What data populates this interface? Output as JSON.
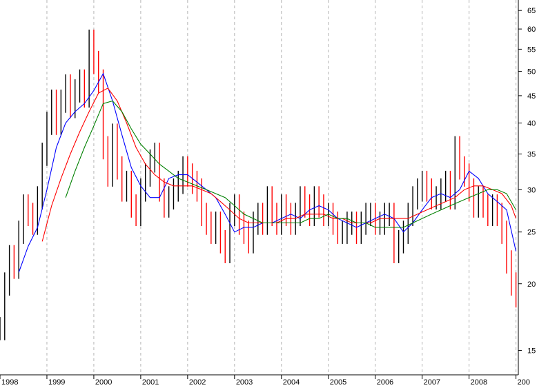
{
  "chart_data": {
    "type": "line",
    "title": "",
    "xlabel": "",
    "ylabel": "",
    "y_scale": "log",
    "ylim": [
      13.5,
      68
    ],
    "xlim": [
      1998.0,
      2009.05
    ],
    "x_ticks": [
      "1998",
      "1999",
      "2000",
      "2001",
      "2002",
      "2003",
      "2004",
      "2005",
      "2006",
      "2007",
      "2008",
      "200"
    ],
    "y_ticks": [
      15,
      20,
      25,
      30,
      35,
      40,
      45,
      50,
      55,
      60,
      65
    ],
    "grid": "vertical-dashed",
    "price_bars": {
      "name": "",
      "up_color": "#000000",
      "down_color": "#ff0000",
      "x": [
        1998.0,
        1998.1,
        1998.2,
        1998.3,
        1998.4,
        1998.5,
        1998.6,
        1998.7,
        1998.8,
        1998.9,
        1999.0,
        1999.1,
        1999.2,
        1999.3,
        1999.4,
        1999.5,
        1999.6,
        1999.7,
        1999.8,
        1999.9,
        2000.0,
        2000.1,
        2000.2,
        2000.3,
        2000.4,
        2000.5,
        2000.6,
        2000.7,
        2000.8,
        2000.9,
        2001.0,
        2001.1,
        2001.2,
        2001.3,
        2001.4,
        2001.5,
        2001.6,
        2001.7,
        2001.8,
        2001.9,
        2002.0,
        2002.1,
        2002.2,
        2002.3,
        2002.4,
        2002.5,
        2002.6,
        2002.7,
        2002.8,
        2002.9,
        2003.0,
        2003.1,
        2003.2,
        2003.3,
        2003.4,
        2003.5,
        2003.6,
        2003.7,
        2003.8,
        2003.9,
        2004.0,
        2004.1,
        2004.2,
        2004.3,
        2004.4,
        2004.5,
        2004.6,
        2004.7,
        2004.8,
        2004.9,
        2005.0,
        2005.1,
        2005.2,
        2005.3,
        2005.4,
        2005.5,
        2005.6,
        2005.7,
        2005.8,
        2005.9,
        2006.0,
        2006.1,
        2006.2,
        2006.3,
        2006.4,
        2006.5,
        2006.6,
        2006.7,
        2006.8,
        2006.9,
        2007.0,
        2007.1,
        2007.2,
        2007.3,
        2007.4,
        2007.5,
        2007.6,
        2007.7,
        2007.8,
        2007.9,
        2008.0,
        2008.1,
        2008.2,
        2008.3,
        2008.4,
        2008.5,
        2008.6,
        2008.7,
        2008.8,
        2008.9,
        2009.0
      ],
      "close": [
        16.5,
        20.0,
        22.5,
        21.5,
        25.0,
        28.0,
        27.0,
        26.0,
        29.0,
        35.0,
        40.0,
        44.0,
        40.0,
        44.0,
        47.0,
        43.0,
        46.0,
        48.0,
        45.0,
        57.0,
        52.0,
        48.0,
        36.0,
        32.0,
        38.0,
        33.0,
        30.0,
        31.0,
        28.0,
        27.0,
        30.0,
        32.0,
        34.0,
        35.0,
        30.0,
        28.0,
        29.0,
        30.0,
        31.0,
        33.0,
        32.0,
        31.0,
        30.0,
        27.0,
        26.0,
        25.0,
        26.0,
        24.0,
        23.0,
        27.0,
        28.0,
        26.0,
        25.0,
        24.0,
        26.0,
        27.0,
        26.0,
        29.0,
        27.0,
        26.0,
        28.0,
        27.0,
        26.0,
        27.0,
        29.0,
        28.0,
        27.0,
        29.0,
        28.0,
        27.0,
        27.0,
        26.0,
        25.0,
        25.0,
        26.0,
        26.0,
        25.0,
        26.0,
        27.0,
        27.0,
        26.0,
        26.0,
        27.0,
        27.0,
        23.0,
        24.0,
        25.0,
        27.0,
        29.0,
        30.0,
        31.0,
        30.0,
        29.0,
        29.0,
        30.0,
        31.0,
        29.0,
        36.0,
        33.0,
        32.0,
        30.0,
        28.0,
        29.0,
        28.0,
        27.0,
        28.0,
        27.0,
        25.0,
        22.0,
        20.0,
        19.0
      ]
    },
    "series": [
      {
        "name": "",
        "color": "#0000ff",
        "x": [
          1998.4,
          1998.6,
          1998.8,
          1999.0,
          1999.2,
          1999.4,
          1999.6,
          1999.8,
          2000.0,
          2000.2,
          2000.4,
          2000.6,
          2000.8,
          2001.0,
          2001.2,
          2001.4,
          2001.6,
          2001.8,
          2002.0,
          2002.2,
          2002.4,
          2002.6,
          2002.8,
          2003.0,
          2003.2,
          2003.4,
          2003.6,
          2003.8,
          2004.0,
          2004.2,
          2004.4,
          2004.6,
          2004.8,
          2005.0,
          2005.2,
          2005.4,
          2005.6,
          2005.8,
          2006.0,
          2006.2,
          2006.4,
          2006.6,
          2006.8,
          2007.0,
          2007.2,
          2007.4,
          2007.6,
          2007.8,
          2008.0,
          2008.2,
          2008.4,
          2008.6,
          2008.8,
          2009.0
        ],
        "y": [
          21.0,
          23.5,
          25.5,
          30.0,
          36.0,
          40.0,
          42.0,
          43.5,
          46.0,
          49.5,
          44.0,
          38.0,
          33.0,
          30.5,
          29.0,
          29.0,
          31.5,
          32.0,
          32.0,
          31.0,
          30.0,
          29.0,
          27.0,
          25.0,
          25.5,
          25.5,
          26.0,
          26.0,
          26.5,
          27.0,
          26.5,
          27.5,
          28.0,
          27.5,
          26.5,
          26.0,
          25.5,
          26.0,
          26.5,
          27.0,
          26.5,
          25.0,
          26.0,
          27.5,
          29.0,
          29.5,
          29.0,
          30.0,
          32.5,
          31.5,
          29.5,
          28.5,
          27.5,
          23.0
        ]
      },
      {
        "name": "",
        "color": "#ff0000",
        "x": [
          1998.9,
          1999.1,
          1999.3,
          1999.5,
          1999.7,
          1999.9,
          2000.1,
          2000.3,
          2000.5,
          2000.7,
          2000.9,
          2001.1,
          2001.3,
          2001.5,
          2001.7,
          2001.9,
          2002.1,
          2002.3,
          2002.5,
          2002.7,
          2002.9,
          2003.1,
          2003.3,
          2003.5,
          2003.7,
          2003.9,
          2004.1,
          2004.3,
          2004.5,
          2004.7,
          2004.9,
          2005.1,
          2005.3,
          2005.5,
          2005.7,
          2005.9,
          2006.1,
          2006.3,
          2006.5,
          2006.7,
          2006.9,
          2007.1,
          2007.3,
          2007.5,
          2007.7,
          2007.9,
          2008.1,
          2008.3,
          2008.5,
          2008.7,
          2008.9,
          2009.0
        ],
        "y": [
          24.0,
          28.0,
          31.5,
          35.0,
          38.5,
          42.0,
          45.5,
          46.5,
          44.0,
          40.0,
          36.0,
          33.5,
          32.0,
          31.0,
          30.5,
          30.5,
          30.5,
          30.0,
          29.5,
          28.5,
          27.5,
          26.5,
          26.0,
          26.0,
          26.0,
          26.0,
          26.5,
          26.5,
          27.0,
          27.0,
          27.0,
          26.5,
          26.5,
          26.0,
          26.0,
          26.0,
          26.5,
          26.5,
          26.5,
          26.5,
          27.0,
          27.5,
          28.0,
          28.5,
          29.0,
          30.0,
          30.5,
          30.5,
          30.0,
          29.5,
          28.0,
          26.5
        ]
      },
      {
        "name": "",
        "color": "#008000",
        "x": [
          1999.4,
          1999.6,
          1999.8,
          2000.0,
          2000.2,
          2000.4,
          2000.6,
          2000.8,
          2001.0,
          2001.2,
          2001.4,
          2001.6,
          2001.8,
          2002.0,
          2002.2,
          2002.4,
          2002.6,
          2002.8,
          2003.0,
          2003.2,
          2003.4,
          2003.6,
          2003.8,
          2004.0,
          2004.2,
          2004.4,
          2004.6,
          2004.8,
          2005.0,
          2005.2,
          2005.4,
          2005.6,
          2005.8,
          2006.0,
          2006.2,
          2006.4,
          2006.6,
          2006.8,
          2007.0,
          2007.2,
          2007.4,
          2007.6,
          2007.8,
          2008.0,
          2008.2,
          2008.4,
          2008.6,
          2008.8,
          2009.0
        ],
        "y": [
          29.0,
          32.5,
          36.0,
          39.5,
          43.5,
          44.0,
          42.0,
          39.0,
          36.5,
          35.0,
          33.5,
          32.5,
          31.5,
          31.0,
          30.5,
          30.0,
          29.5,
          29.0,
          28.0,
          27.0,
          26.5,
          26.0,
          26.0,
          26.0,
          26.0,
          26.0,
          26.5,
          26.5,
          27.0,
          26.5,
          26.5,
          26.0,
          26.0,
          25.5,
          25.5,
          25.5,
          25.5,
          26.0,
          26.5,
          27.0,
          27.5,
          28.0,
          28.5,
          29.0,
          29.5,
          30.0,
          30.0,
          29.5,
          27.5
        ]
      }
    ]
  }
}
